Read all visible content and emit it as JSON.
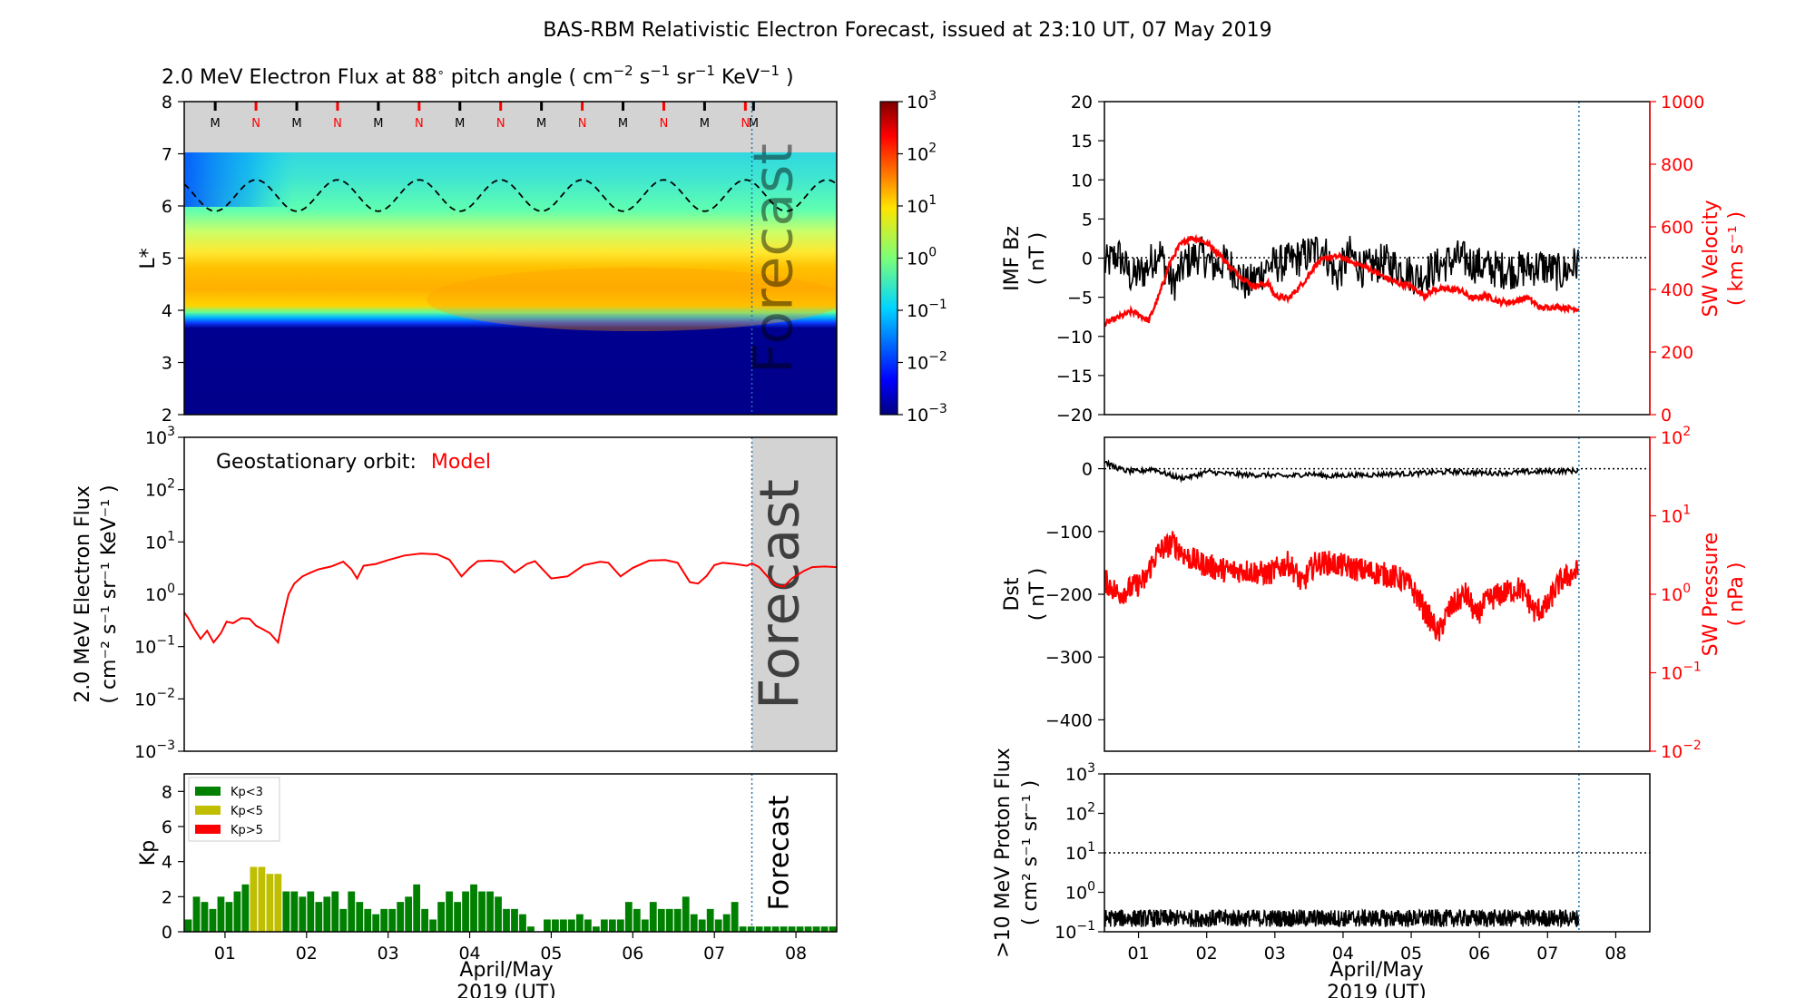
{
  "figure": {
    "title": "BAS-RBM Relativistic Electron Forecast, issued at 23:10 UT, 07 May 2019",
    "xlabel_line1": "April/May",
    "xlabel_line2": "2019 (UT)",
    "forecast_word": "Forecast",
    "colors": {
      "red": "#ff0000",
      "green": "#008000",
      "olive": "#bfbf00",
      "forecast_shade": "#d3d3d3",
      "vline": "#1f77b4"
    }
  },
  "chart_data": [
    {
      "id": "lstar_panel",
      "type": "heatmap",
      "title": "2.0 MeV Electron Flux at 88° pitch angle ( cm⁻² s⁻¹ sr⁻¹ KeV⁻¹ )",
      "title_parts": {
        "prefix": "2.0 MeV Electron Flux at 88",
        "deg": "∘",
        "mid": " pitch angle ( cm",
        "sup1": "−2",
        "s": " s",
        "sup2": "−1",
        "sr": " sr",
        "sup3": "−1",
        "kev": " KeV",
        "sup4": "−1",
        "suffix": " )"
      },
      "ylabel": "L*",
      "yticks": [
        "2",
        "3",
        "4",
        "5",
        "6",
        "7",
        "8"
      ],
      "ylim": [
        2,
        8
      ],
      "xlim_days": [
        0.5,
        8.5
      ],
      "forecast_start_day": 7.46,
      "colorbar": {
        "scale": "log",
        "range": [
          0.001,
          1000
        ],
        "ticks": [
          "10",
          "10",
          "10",
          "10",
          "10",
          "10",
          "10"
        ],
        "exponents": [
          "3",
          "2",
          "1",
          "0",
          "−1",
          "−2",
          "−3"
        ]
      },
      "orbit_markers": {
        "labels": [
          "M",
          "N",
          "M",
          "N",
          "M",
          "N",
          "M",
          "N",
          "M",
          "N",
          "M",
          "N",
          "M",
          "N",
          "M"
        ],
        "days": [
          0.88,
          1.38,
          1.88,
          2.38,
          2.88,
          3.38,
          3.88,
          4.38,
          4.88,
          5.38,
          5.88,
          6.38,
          6.88,
          7.38,
          7.48
        ]
      },
      "geo_orbit_L": {
        "mean": 6.2,
        "amplitude": 0.3,
        "period_days": 1.0
      }
    },
    {
      "id": "geo_flux_panel",
      "type": "line",
      "ylabel_line1": "2.0 MeV Electron Flux",
      "ylabel_line2": "( cm⁻² s⁻¹ sr⁻¹ KeV⁻¹ )",
      "annotation_prefix": "Geostationary orbit:",
      "annotation_model": "Model",
      "yscale": "log",
      "ylim": [
        0.001,
        1000
      ],
      "yticks_base": [
        "10",
        "10",
        "10",
        "10",
        "10",
        "10",
        "10"
      ],
      "yticks_exp": [
        "3",
        "2",
        "1",
        "0",
        "−1",
        "−2",
        "−3"
      ],
      "series": [
        {
          "x": [
            0.5,
            0.55,
            0.62,
            0.7,
            0.78,
            0.86,
            0.95,
            1.02,
            1.1,
            1.2,
            1.3,
            1.38,
            1.45,
            1.55,
            1.65,
            1.72,
            1.78,
            1.85,
            1.95,
            2.05,
            2.15,
            2.3,
            2.45,
            2.55,
            2.62,
            2.7,
            2.85,
            3.0,
            3.2,
            3.4,
            3.6,
            3.75,
            3.9,
            4.0,
            4.1,
            4.25,
            4.4,
            4.55,
            4.7,
            4.8,
            5.0,
            5.2,
            5.4,
            5.6,
            5.7,
            5.85,
            6.0,
            6.2,
            6.4,
            6.55,
            6.7,
            6.8,
            6.9,
            7.0,
            7.1,
            7.25,
            7.4,
            7.46,
            7.55,
            7.65,
            7.75,
            7.85,
            7.95,
            8.1,
            8.2,
            8.35,
            8.5
          ],
          "y": [
            0.45,
            0.35,
            0.22,
            0.14,
            0.2,
            0.12,
            0.18,
            0.3,
            0.28,
            0.35,
            0.34,
            0.25,
            0.22,
            0.18,
            0.12,
            0.4,
            1.0,
            1.6,
            2.2,
            2.6,
            3.0,
            3.4,
            4.2,
            3.0,
            2.0,
            3.5,
            3.8,
            4.5,
            5.5,
            6.0,
            5.8,
            4.6,
            2.2,
            3.2,
            4.3,
            4.4,
            4.2,
            2.6,
            3.8,
            4.3,
            2.0,
            2.2,
            3.6,
            4.2,
            4.0,
            2.2,
            3.2,
            4.4,
            4.5,
            4.0,
            1.7,
            1.6,
            2.2,
            3.6,
            4.0,
            3.8,
            3.5,
            3.9,
            3.3,
            2.2,
            1.5,
            1.4,
            2.0,
            2.8,
            3.3,
            3.4,
            3.3
          ]
        }
      ]
    },
    {
      "id": "kp_panel",
      "type": "bar",
      "ylabel": "Kp",
      "ylim": [
        0,
        9
      ],
      "yticks": [
        "0",
        "2",
        "4",
        "6",
        "8"
      ],
      "legend": [
        "Kp<3",
        "Kp<5",
        "Kp>5"
      ],
      "bar_width_days": 0.1,
      "start_day": 0.5,
      "values": [
        0.7,
        2.0,
        1.7,
        1.3,
        2.0,
        1.7,
        2.3,
        2.7,
        3.7,
        3.7,
        3.3,
        3.3,
        2.3,
        2.3,
        2.0,
        2.3,
        1.7,
        2.0,
        2.3,
        1.3,
        2.3,
        1.7,
        1.3,
        1.0,
        1.3,
        1.3,
        1.7,
        2.0,
        2.7,
        1.3,
        0.7,
        1.7,
        2.3,
        1.7,
        2.3,
        2.7,
        2.3,
        2.3,
        2.0,
        1.3,
        1.3,
        1.0,
        0.3,
        0.0,
        0.7,
        0.7,
        0.7,
        0.7,
        1.0,
        0.7,
        0.3,
        0.7,
        0.7,
        0.7,
        1.7,
        1.3,
        0.7,
        1.7,
        1.3,
        1.3,
        1.3,
        2.0,
        1.0,
        0.7,
        1.3,
        0.7,
        1.0,
        1.7,
        0.3,
        0.3,
        0.3,
        0.3,
        0.3,
        0.3,
        0.3,
        0.3,
        0.3,
        0.3,
        0.3,
        0.3
      ],
      "olive_index_range": [
        8,
        11
      ]
    },
    {
      "id": "imf_panel",
      "type": "line",
      "ylabel_left_line1": "IMF Bz",
      "ylabel_left_line2": "( nT )",
      "ylabel_right_line1": "SW Velocity",
      "ylabel_right_line2": "( km s⁻¹ )",
      "ylim_left": [
        -20,
        20
      ],
      "yticks_left": [
        "−20",
        "−15",
        "−10",
        "−5",
        "0",
        "5",
        "10",
        "15",
        "20"
      ],
      "ylim_right": [
        0,
        1000
      ],
      "yticks_right": [
        "0",
        "200",
        "400",
        "600",
        "800",
        "1000"
      ],
      "bz_x": [
        0.5,
        0.7,
        0.9,
        1.1,
        1.3,
        1.5,
        1.7,
        1.9,
        2.1,
        2.3,
        2.6,
        2.9,
        3.2,
        3.5,
        3.7,
        3.9,
        4.1,
        4.3,
        4.6,
        4.9,
        5.1,
        5.4,
        5.7,
        6.0,
        6.3,
        6.6,
        6.9,
        7.2,
        7.46
      ],
      "bz_y": [
        -1.0,
        0.5,
        -2.5,
        -1.5,
        1.0,
        -3.5,
        -0.5,
        0.5,
        -1.0,
        -0.5,
        -3.5,
        -1.0,
        -0.5,
        0.5,
        1.5,
        -2.5,
        0.5,
        -1.5,
        -0.5,
        -1.5,
        -2.5,
        -1.0,
        0.0,
        -1.0,
        -1.5,
        -1.5,
        -1.0,
        -2.0,
        -0.5
      ],
      "bz_noise_nT": 2.5,
      "sw_velocity_x": [
        0.5,
        0.7,
        0.9,
        1.0,
        1.15,
        1.3,
        1.45,
        1.6,
        1.75,
        1.9,
        2.05,
        2.2,
        2.35,
        2.5,
        2.7,
        2.9,
        3.0,
        3.2,
        3.45,
        3.6,
        3.75,
        3.95,
        4.1,
        4.35,
        4.6,
        4.8,
        5.0,
        5.2,
        5.35,
        5.5,
        5.7,
        5.9,
        6.1,
        6.3,
        6.5,
        6.7,
        6.9,
        7.1,
        7.3,
        7.46
      ],
      "sw_velocity_y": [
        290,
        310,
        330,
        320,
        300,
        380,
        480,
        540,
        565,
        560,
        540,
        510,
        470,
        440,
        410,
        420,
        380,
        370,
        430,
        480,
        500,
        505,
        490,
        470,
        440,
        420,
        410,
        380,
        400,
        400,
        400,
        370,
        380,
        360,
        360,
        375,
        340,
        345,
        340,
        338
      ]
    },
    {
      "id": "dst_panel",
      "type": "line",
      "ylabel_left_line1": "Dst",
      "ylabel_left_line2": "( nT )",
      "ylabel_right_line1": "SW Pressure",
      "ylabel_right_line2": "( nPa )",
      "ylim_left": [
        -450,
        50
      ],
      "yticks_left": [
        "−400",
        "−300",
        "−200",
        "−100",
        "0"
      ],
      "yscale_right": "log",
      "ylim_right": [
        0.01,
        100
      ],
      "yticks_right_base": [
        "10",
        "10",
        "10",
        "10",
        "10"
      ],
      "yticks_right_exp": [
        "−2",
        "−1",
        "0",
        "1",
        "2"
      ],
      "dst_x": [
        0.5,
        0.6,
        0.8,
        1.0,
        1.2,
        1.4,
        1.6,
        1.8,
        2.0,
        2.3,
        2.6,
        2.9,
        3.2,
        3.5,
        3.8,
        4.1,
        4.4,
        4.7,
        5.0,
        5.3,
        5.6,
        5.9,
        6.2,
        6.5,
        6.8,
        7.1,
        7.46
      ],
      "dst_y": [
        12,
        5,
        -3,
        -5,
        0,
        -8,
        -15,
        -12,
        -5,
        -8,
        -10,
        -10,
        -12,
        -8,
        -12,
        -10,
        -10,
        -8,
        -8,
        -6,
        -5,
        -6,
        -7,
        -6,
        -5,
        -4,
        -3
      ],
      "sw_pressure_x": [
        0.5,
        0.7,
        0.9,
        1.1,
        1.3,
        1.5,
        1.7,
        1.9,
        2.1,
        2.3,
        2.6,
        2.9,
        3.2,
        3.4,
        3.6,
        3.8,
        4.0,
        4.3,
        4.6,
        4.9,
        5.2,
        5.4,
        5.5,
        5.6,
        5.8,
        5.95,
        6.1,
        6.3,
        6.6,
        6.8,
        7.0,
        7.2,
        7.46
      ],
      "sw_pressure_y": [
        1.5,
        1.0,
        1.2,
        1.5,
        3.5,
        4.5,
        3.0,
        2.5,
        2.2,
        2.0,
        2.0,
        1.8,
        2.5,
        1.3,
        2.5,
        2.5,
        2.3,
        2.0,
        1.8,
        1.5,
        0.6,
        0.3,
        0.5,
        0.7,
        1.0,
        0.5,
        0.8,
        1.0,
        1.2,
        0.6,
        0.7,
        1.5,
        2.0
      ]
    },
    {
      "id": "proton_panel",
      "type": "line",
      "ylabel_line1": ">10 MeV Proton Flux",
      "ylabel_line2": "( cm² s⁻¹ sr⁻¹ )",
      "yscale": "log",
      "ylim": [
        0.1,
        1000
      ],
      "yticks_base": [
        "10",
        "10",
        "10",
        "10",
        "10"
      ],
      "yticks_exp": [
        "3",
        "2",
        "1",
        "0",
        "−1"
      ],
      "threshold": 10,
      "level": 0.22,
      "x_end_day": 7.46
    }
  ],
  "x_axis": {
    "day_ticks": [
      "01",
      "02",
      "03",
      "04",
      "05",
      "06",
      "07",
      "08"
    ],
    "day_values": [
      1,
      2,
      3,
      4,
      5,
      6,
      7,
      8
    ]
  }
}
